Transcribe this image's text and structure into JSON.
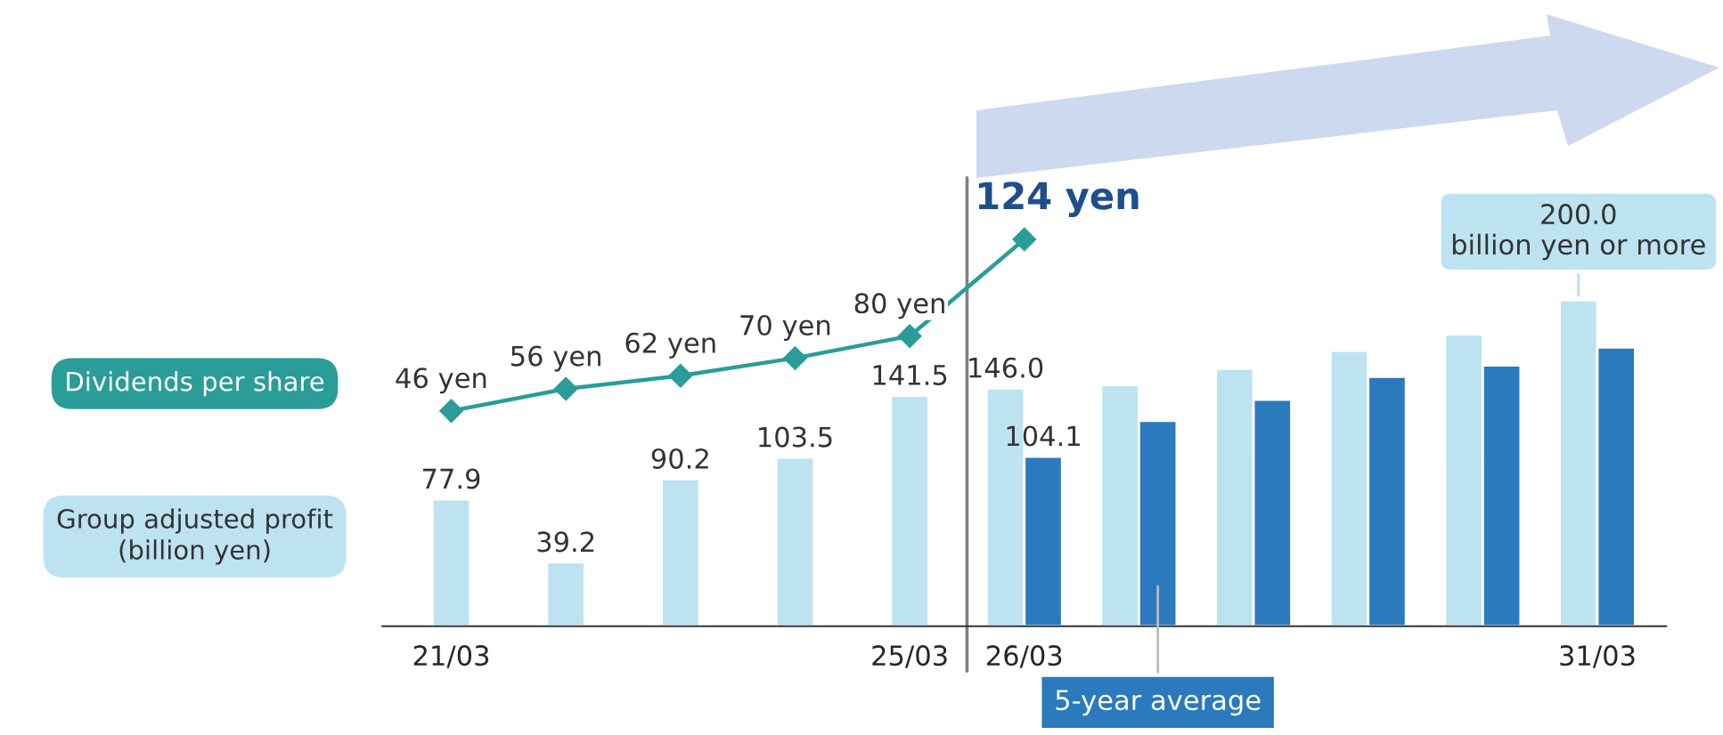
{
  "chart_data": {
    "type": "bar",
    "categories": [
      "21/03",
      null,
      null,
      null,
      "25/03",
      "26/03",
      null,
      null,
      null,
      null,
      "31/03"
    ],
    "series": [
      {
        "name": "Group adjusted profit\n(billion yen)",
        "color": "#bde3f1",
        "values": [
          77.9,
          39.2,
          90.2,
          103.5,
          141.5,
          146.0,
          148,
          158,
          169,
          179,
          200
        ],
        "value_labels": [
          "77.9",
          "39.2",
          "90.2",
          "103.5",
          "141.5",
          "146.0",
          null,
          null,
          null,
          null,
          null
        ]
      },
      {
        "color": "#2a7abd",
        "values": [
          null,
          null,
          null,
          null,
          null,
          104.1,
          126,
          139,
          153,
          160,
          171
        ],
        "value_labels": [
          null,
          null,
          null,
          null,
          null,
          "104.1",
          null,
          null,
          null,
          null,
          null
        ]
      },
      {
        "name": "Dividends per share",
        "type": "line",
        "axis": "y2",
        "color": "#2a9d98",
        "marker": "diamond",
        "values": [
          46,
          56,
          62,
          70,
          80,
          124,
          null,
          null,
          null,
          null,
          null
        ],
        "value_labels": [
          "46 yen",
          "56 yen",
          "62 yen",
          "70 yen",
          "80 yen",
          "124 yen",
          null,
          null,
          null,
          null,
          null
        ]
      }
    ],
    "ylim": [
      0,
      275
    ],
    "y2lim": [
      -52,
      152
    ],
    "tick_labels": "x",
    "grid": false,
    "legend": "left",
    "annotations": [
      {
        "text": "200.0\nbillion yen or more",
        "x": "31/03",
        "y": 200
      },
      "5-year average"
    ]
  }
}
